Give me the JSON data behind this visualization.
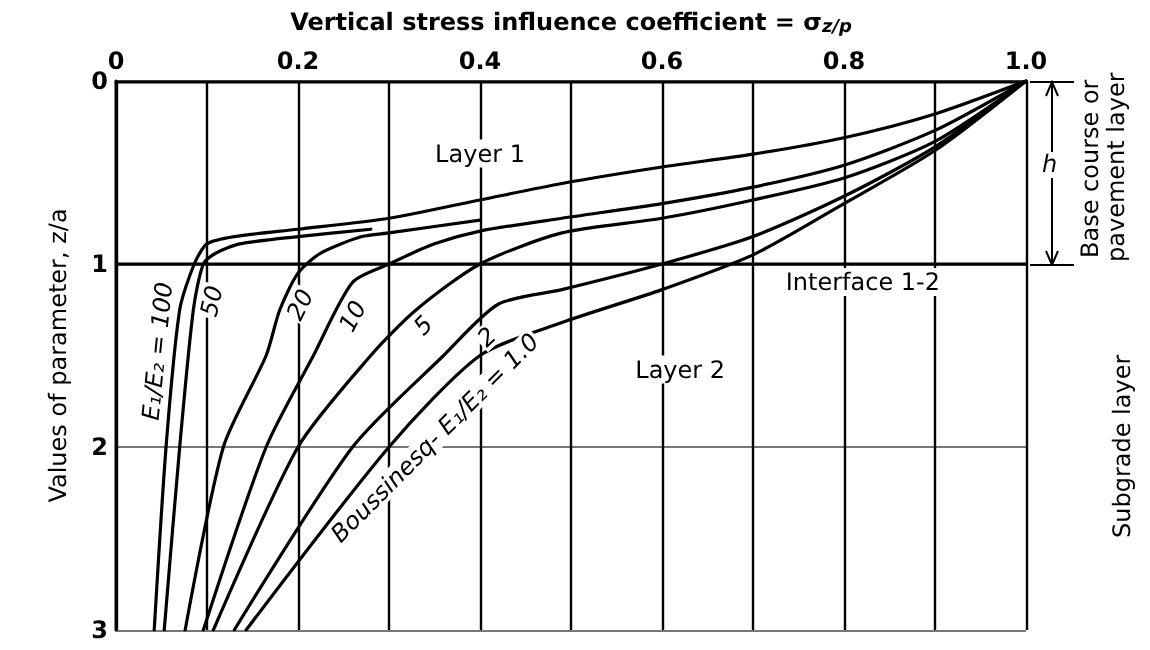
{
  "chart_data": {
    "type": "line",
    "xlabel": "Vertical stress influence coefficient = σ$_{z/p}$",
    "ylabel": "Values of parameter, z/a",
    "xlim": [
      0,
      1
    ],
    "ylim": [
      3,
      0
    ],
    "xticks": [
      0,
      {
        "value": 0.1,
        "label": null
      },
      0.2,
      {
        "value": 0.3,
        "label": null
      },
      0.4,
      {
        "value": 0.5,
        "label": null
      },
      0.6,
      {
        "value": 0.7,
        "label": null
      },
      0.8,
      {
        "value": 0.9,
        "label": null
      },
      {
        "value": 1,
        "label": "1.0"
      }
    ],
    "yticks": [
      0,
      1,
      2,
      3
    ],
    "grid": true,
    "legend": false,
    "marker": "none",
    "line_style": "solid",
    "series": [
      {
        "name": "E₁/E₂ = 100",
        "color": "#000000",
        "x": [
          1,
          0.9,
          0.8,
          0.7,
          0.6,
          0.49,
          0.4,
          0.3,
          0.2,
          0.13,
          0.1,
          0.086,
          0.07,
          0.055,
          0.042
        ],
        "values": [
          0,
          0.18,
          0.31,
          0.4,
          0.47,
          0.56,
          0.65,
          0.75,
          0.81,
          0.85,
          0.89,
          1.0,
          1.25,
          2,
          3
        ]
      },
      {
        "name": "50",
        "color": "#000000",
        "x": [
          0.28,
          0.2,
          0.136,
          0.11,
          0.096,
          0.085,
          0.07,
          0.053
        ],
        "values": [
          0.81,
          0.85,
          0.89,
          0.94,
          1.0,
          1.25,
          2,
          3
        ]
      },
      {
        "name": "20",
        "color": "#000000",
        "x": [
          0.4,
          0.3,
          0.27,
          0.225,
          0.2,
          0.18,
          0.165,
          0.118,
          0.076
        ],
        "values": [
          0.76,
          0.83,
          0.85,
          0.94,
          1.05,
          1.25,
          1.5,
          2,
          3
        ]
      },
      {
        "name": "10",
        "color": "#000000",
        "x": [
          1,
          0.9,
          0.8,
          0.7,
          0.6,
          0.49,
          0.4,
          0.35,
          0.3,
          0.26,
          0.217,
          0.165,
          0.096
        ],
        "values": [
          0,
          0.27,
          0.46,
          0.58,
          0.67,
          0.75,
          0.82,
          0.89,
          1.0,
          1.1,
          1.5,
          2,
          3
        ]
      },
      {
        "name": "5",
        "color": "#000000",
        "x": [
          1,
          0.9,
          0.8,
          0.7,
          0.6,
          0.49,
          0.4,
          0.33,
          0.28,
          0.2,
          0.107
        ],
        "values": [
          0,
          0.33,
          0.53,
          0.65,
          0.75,
          0.83,
          1.0,
          1.25,
          1.5,
          2,
          3
        ]
      },
      {
        "name": "2",
        "color": "#000000",
        "x": [
          1,
          0.9,
          0.8,
          0.7,
          0.6,
          0.49,
          0.42,
          0.36,
          0.26,
          0.13
        ],
        "values": [
          0,
          0.36,
          0.63,
          0.85,
          1.0,
          1.14,
          1.22,
          1.5,
          2,
          3
        ]
      },
      {
        "name": "Boussinesq- E₁/E₂ = 1.0",
        "color": "#000000",
        "x": [
          1,
          0.9,
          0.8,
          0.7,
          0.6,
          0.49,
          0.4,
          0.3,
          0.143
        ],
        "values": [
          0,
          0.38,
          0.67,
          0.95,
          1.14,
          1.32,
          1.5,
          2,
          3
        ]
      }
    ],
    "ref_lines": [
      {
        "axis": "y",
        "value": 1,
        "label": "Interface 1-2",
        "color": "#000000"
      }
    ],
    "annotations": [
      "Layer 1",
      "Layer 2",
      "h",
      "Base course or pavement layer",
      "Subgrade layer"
    ]
  }
}
